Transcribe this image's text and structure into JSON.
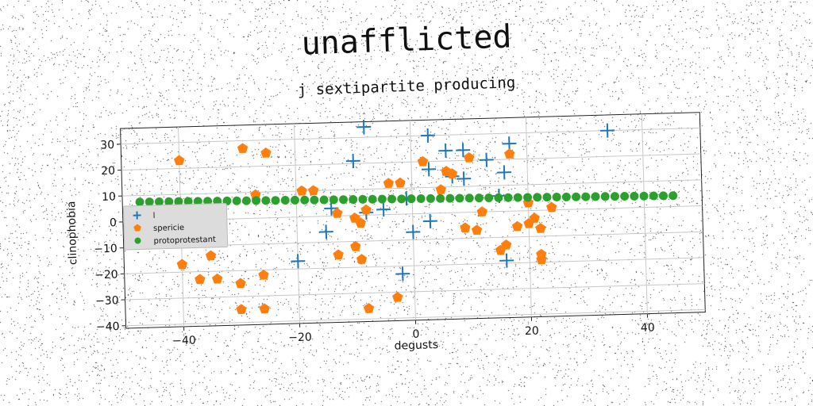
{
  "chart_data": {
    "type": "scatter",
    "title": "unafflicted",
    "subtitle": "j sextipartite producing",
    "xlabel": "degusts",
    "ylabel": "clinophobia",
    "xlim": [
      -50,
      50
    ],
    "ylim": [
      -41,
      36
    ],
    "xticks": [
      -40,
      -20,
      0,
      20,
      40
    ],
    "yticks": [
      -40,
      -30,
      -20,
      -10,
      0,
      10,
      20,
      30
    ],
    "grid": true,
    "legend_position": "center-left",
    "series": [
      {
        "name": "l",
        "marker": "plus",
        "color": "#1f77b4",
        "points": [
          [
            -8,
            34
          ],
          [
            -10,
            21
          ],
          [
            3,
            30
          ],
          [
            6,
            24
          ],
          [
            9,
            24
          ],
          [
            13,
            20
          ],
          [
            17,
            26
          ],
          [
            3,
            17
          ],
          [
            9,
            13
          ],
          [
            16,
            15
          ],
          [
            34,
            30
          ],
          [
            -1,
            6
          ],
          [
            15,
            6
          ],
          [
            -14,
            3
          ],
          [
            -5,
            2
          ],
          [
            -8,
            1
          ],
          [
            -15,
            -6
          ],
          [
            -20,
            -17
          ],
          [
            3,
            -3
          ],
          [
            0,
            -7
          ],
          [
            -2,
            -23
          ],
          [
            16,
            -19
          ],
          [
            7,
            14
          ]
        ]
      },
      {
        "name": "spericie",
        "marker": "pentagon",
        "color": "#ff7f0e",
        "points": [
          [
            -40,
            23
          ],
          [
            -29,
            27
          ],
          [
            -25,
            25
          ],
          [
            -27,
            9
          ],
          [
            -19,
            10
          ],
          [
            -17,
            10
          ],
          [
            -4,
            12
          ],
          [
            -2,
            12
          ],
          [
            2,
            20
          ],
          [
            5,
            9
          ],
          [
            6,
            16
          ],
          [
            7,
            15
          ],
          [
            10,
            21
          ],
          [
            17,
            22
          ],
          [
            -13,
            1
          ],
          [
            -8,
            2
          ],
          [
            -10,
            -1
          ],
          [
            -9,
            -3
          ],
          [
            -10,
            -12
          ],
          [
            -13,
            -15
          ],
          [
            -9,
            -17
          ],
          [
            -40,
            -17
          ],
          [
            -35,
            -14
          ],
          [
            -37,
            -23
          ],
          [
            -34,
            -23
          ],
          [
            -30,
            -25
          ],
          [
            -26,
            -22
          ],
          [
            -30,
            -35
          ],
          [
            -26,
            -35
          ],
          [
            -8,
            -36
          ],
          [
            -3,
            -32
          ],
          [
            9,
            -6
          ],
          [
            11,
            -7
          ],
          [
            12,
            0
          ],
          [
            15,
            -15
          ],
          [
            16,
            -13
          ],
          [
            18,
            -6
          ],
          [
            20,
            -5
          ],
          [
            21,
            -3
          ],
          [
            22,
            -7
          ],
          [
            22,
            -17
          ],
          [
            22,
            -19
          ],
          [
            24,
            1
          ],
          [
            20,
            3
          ]
        ]
      },
      {
        "name": "protoprotestant",
        "marker": "circle",
        "color": "#2ca02c",
        "x_start": -47,
        "x_end": 45,
        "y_start": 7.5,
        "y_end": 4.2,
        "count": 56
      }
    ]
  }
}
